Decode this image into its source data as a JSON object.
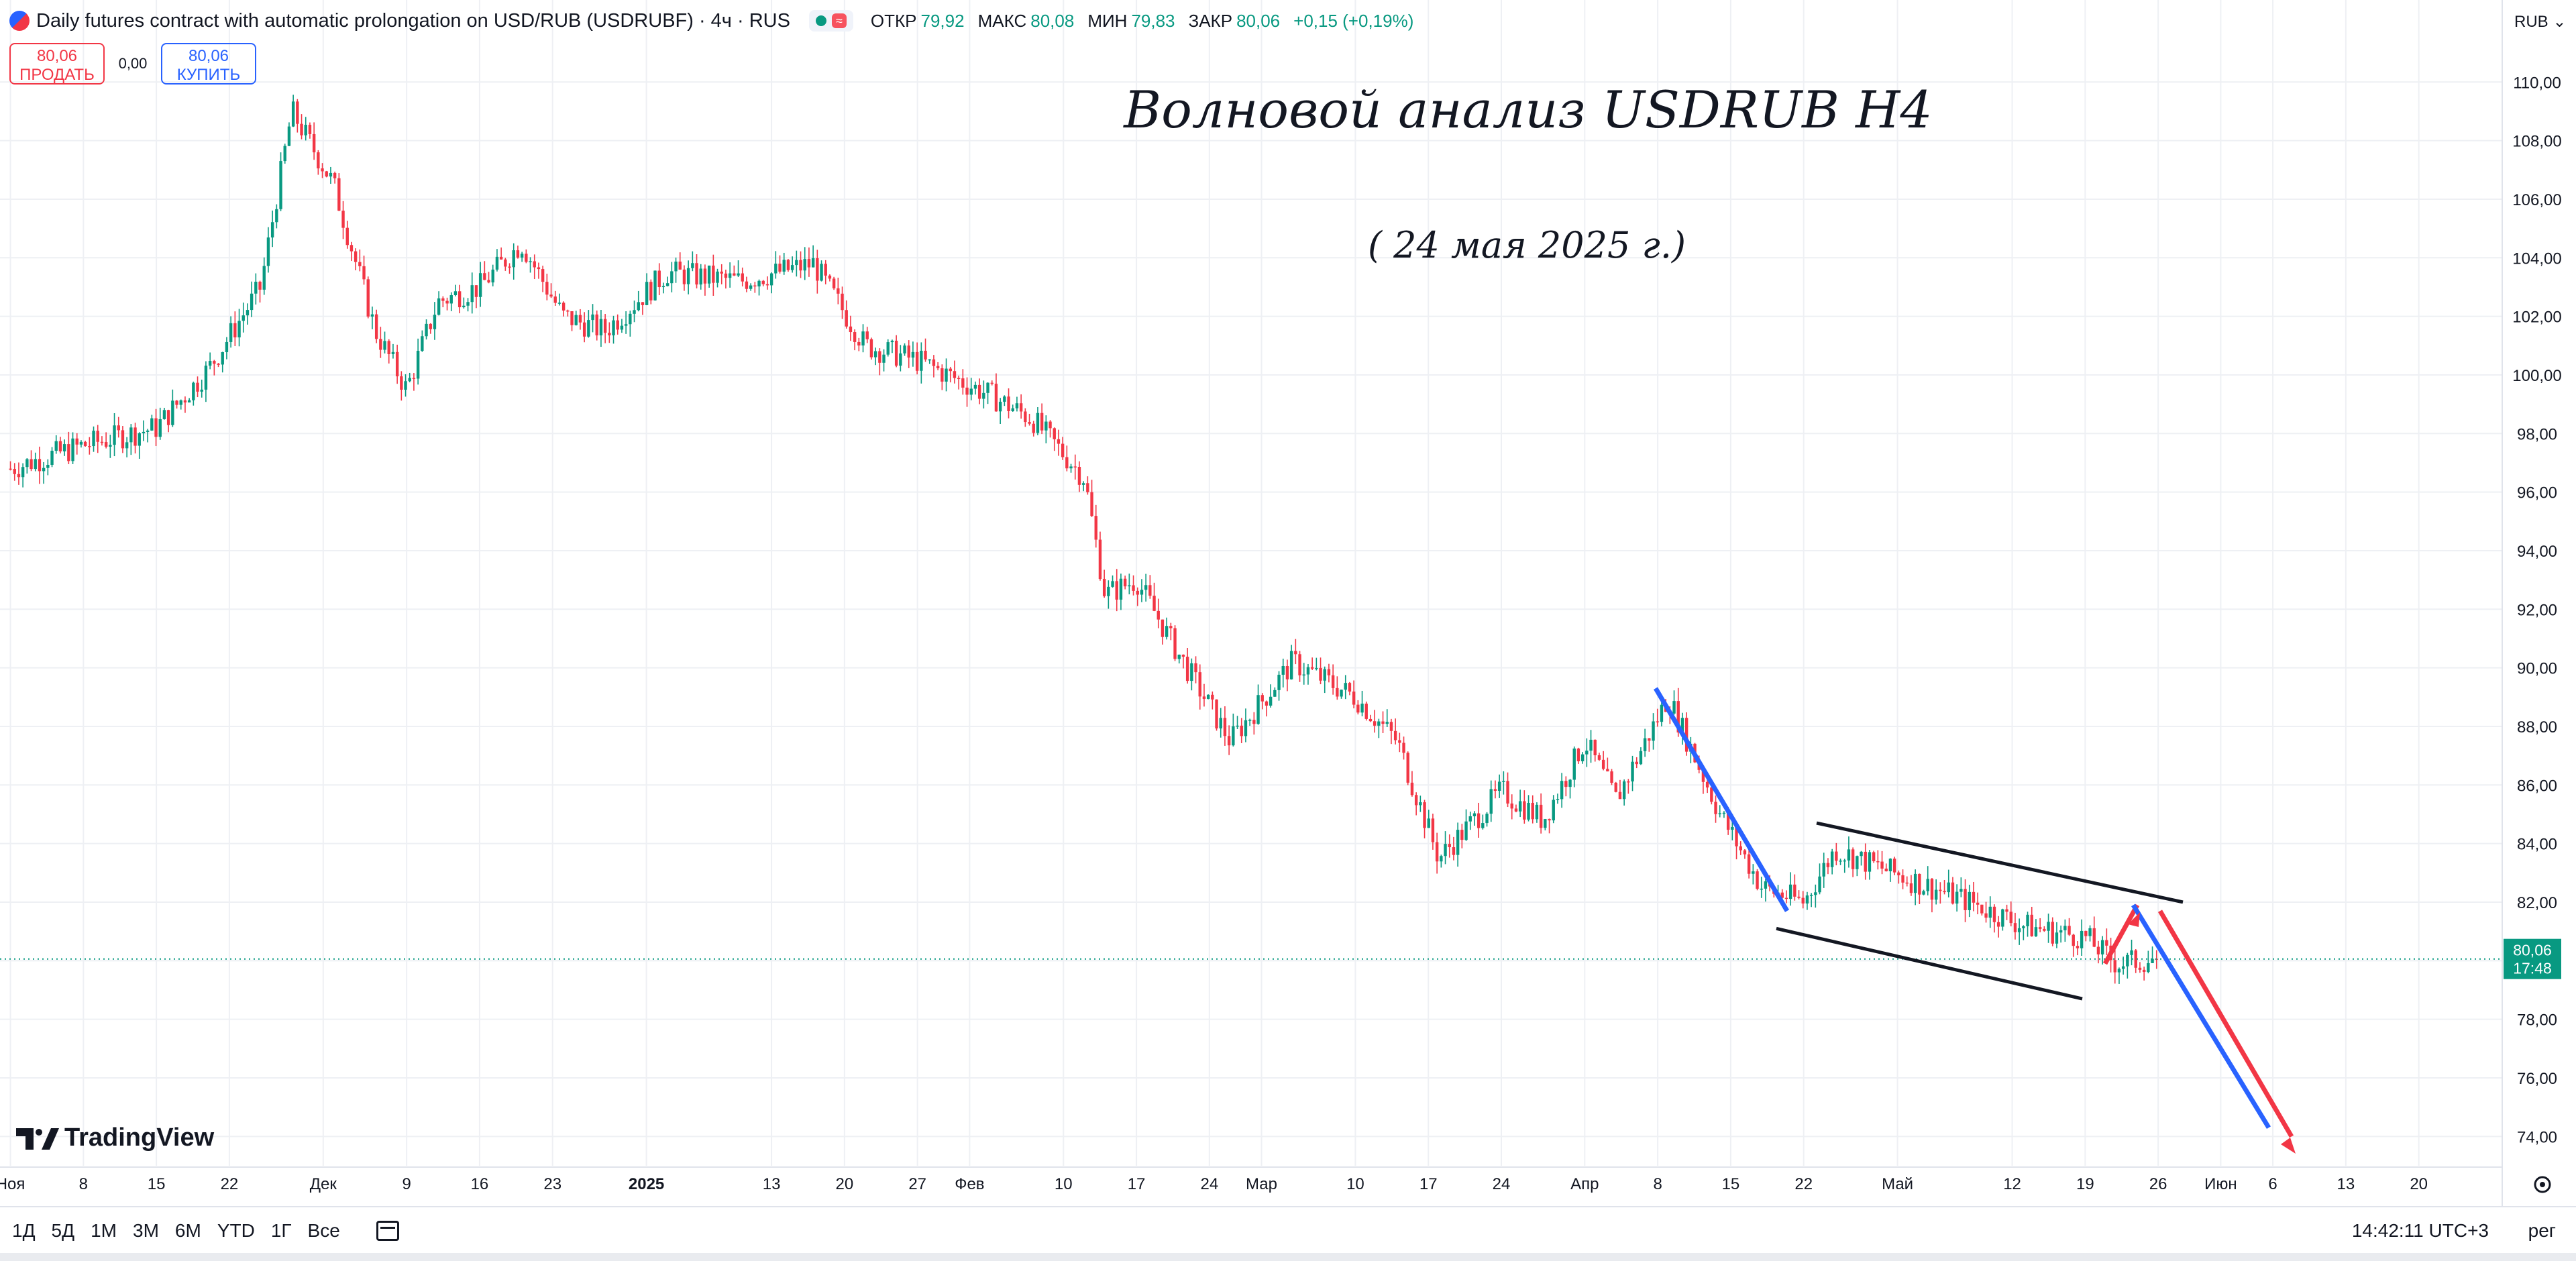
{
  "header": {
    "title": "Daily futures contract with automatic prolongation on USD/RUB (USDRUBF) · 4ч · RUS",
    "status_icon": "≈",
    "ohlc": [
      {
        "k": "ОТКР",
        "v": "79,92"
      },
      {
        "k": "МАКС",
        "v": "80,08"
      },
      {
        "k": "МИН",
        "v": "79,83"
      },
      {
        "k": "ЗАКР",
        "v": "80,06"
      }
    ],
    "change": "+0,15 (+0,19%)"
  },
  "trade": {
    "sell_price": "80,06",
    "sell_label": "ПРОДАТЬ",
    "spread": "0,00",
    "buy_price": "80,06",
    "buy_label": "КУПИТЬ"
  },
  "currency": "RUB",
  "price_tag": {
    "price": "80,06",
    "countdown": "17:48"
  },
  "annotations": {
    "title": "Волновой анализ USDRUB H4",
    "date": "( 24 мая 2025 г.)"
  },
  "logo": "TradingView",
  "toolbar": {
    "ranges": [
      "1Д",
      "5Д",
      "1М",
      "3М",
      "6М",
      "YTD",
      "1Г",
      "Все"
    ],
    "clock": "14:42:11 UTC+3",
    "scale": "рег"
  },
  "colors": {
    "up": "#089981",
    "down": "#f23645",
    "blue": "#2962ff",
    "red": "#f23645",
    "grid": "#eef0f4"
  },
  "chart_data": {
    "type": "candlestick",
    "title": "",
    "y_ticks": [
      "74,00",
      "76,00",
      "78,00",
      "80,00",
      "82,00",
      "84,00",
      "86,00",
      "88,00",
      "90,00",
      "92,00",
      "94,00",
      "96,00",
      "98,00",
      "100,00",
      "102,00",
      "104,00",
      "106,00",
      "108,00",
      "110,00"
    ],
    "ylim": [
      73.0,
      112.8
    ],
    "x_ticks": [
      "Ноя",
      "8",
      "15",
      "22",
      "Дек",
      "9",
      "16",
      "23",
      "2025",
      "13",
      "20",
      "27",
      "Фев",
      "10",
      "17",
      "24",
      "Мар",
      "10",
      "17",
      "24",
      "Апр",
      "8",
      "15",
      "22",
      "Май",
      "12",
      "19",
      "26",
      "Июн",
      "6",
      "13",
      "20"
    ],
    "price_path": [
      {
        "d": "2024-11-01",
        "p": 96.8
      },
      {
        "d": "2024-11-08",
        "p": 97.6
      },
      {
        "d": "2024-11-15",
        "p": 98.2
      },
      {
        "d": "2024-11-20",
        "p": 100.2
      },
      {
        "d": "2024-11-25",
        "p": 103.0
      },
      {
        "d": "2024-11-28",
        "p": 109.0
      },
      {
        "d": "2024-12-02",
        "p": 106.5
      },
      {
        "d": "2024-12-06",
        "p": 101.5
      },
      {
        "d": "2024-12-09",
        "p": 99.5
      },
      {
        "d": "2024-12-12",
        "p": 102.5
      },
      {
        "d": "2024-12-16",
        "p": 103.0
      },
      {
        "d": "2024-12-20",
        "p": 104.5
      },
      {
        "d": "2024-12-24",
        "p": 102.0
      },
      {
        "d": "2024-12-28",
        "p": 101.5
      },
      {
        "d": "2025-01-03",
        "p": 103.5
      },
      {
        "d": "2025-01-10",
        "p": 103.2
      },
      {
        "d": "2025-01-17",
        "p": 103.8
      },
      {
        "d": "2025-01-22",
        "p": 101.0
      },
      {
        "d": "2025-01-27",
        "p": 100.5
      },
      {
        "d": "2025-02-03",
        "p": 99.3
      },
      {
        "d": "2025-02-07",
        "p": 98.5
      },
      {
        "d": "2025-02-12",
        "p": 96.5
      },
      {
        "d": "2025-02-14",
        "p": 92.5
      },
      {
        "d": "2025-02-17",
        "p": 93.0
      },
      {
        "d": "2025-02-21",
        "p": 90.5
      },
      {
        "d": "2025-02-26",
        "p": 87.5
      },
      {
        "d": "2025-03-04",
        "p": 90.2
      },
      {
        "d": "2025-03-10",
        "p": 89.0
      },
      {
        "d": "2025-03-14",
        "p": 87.5
      },
      {
        "d": "2025-03-18",
        "p": 83.5
      },
      {
        "d": "2025-03-24",
        "p": 85.8
      },
      {
        "d": "2025-03-28",
        "p": 84.8
      },
      {
        "d": "2025-04-01",
        "p": 87.5
      },
      {
        "d": "2025-04-04",
        "p": 85.5
      },
      {
        "d": "2025-04-09",
        "p": 89.0
      },
      {
        "d": "2025-04-14",
        "p": 85.0
      },
      {
        "d": "2025-04-18",
        "p": 82.5
      },
      {
        "d": "2025-04-22",
        "p": 82.0
      },
      {
        "d": "2025-04-25",
        "p": 83.8
      },
      {
        "d": "2025-05-02",
        "p": 82.8
      },
      {
        "d": "2025-05-08",
        "p": 82.0
      },
      {
        "d": "2025-05-13",
        "p": 81.2
      },
      {
        "d": "2025-05-19",
        "p": 80.8
      },
      {
        "d": "2025-05-22",
        "p": 79.9
      },
      {
        "d": "2025-05-26",
        "p": 80.06
      }
    ],
    "current_price": 80.06
  }
}
